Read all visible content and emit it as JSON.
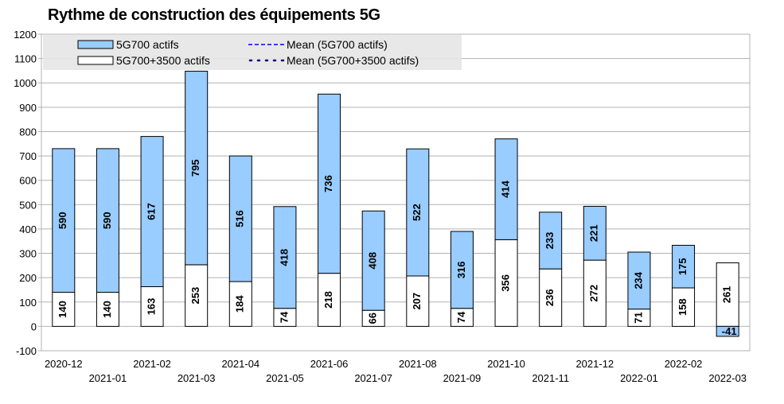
{
  "chart_data": {
    "type": "bar",
    "stacked": true,
    "title": "Rythme de construction des équipements 5G",
    "xlabel": "",
    "ylabel": "",
    "ylim": [
      -100,
      1200
    ],
    "yticks": [
      -100,
      0,
      100,
      200,
      300,
      400,
      500,
      600,
      700,
      800,
      900,
      1000,
      1100,
      1200
    ],
    "grid": true,
    "legend_position": "top-left",
    "categories": [
      "2020-12",
      "2021-01",
      "2021-02",
      "2021-03",
      "2021-04",
      "2021-05",
      "2021-06",
      "2021-07",
      "2021-08",
      "2021-09",
      "2021-10",
      "2021-11",
      "2021-12",
      "2022-01",
      "2022-02",
      "2022-03"
    ],
    "series": [
      {
        "name": "5G700+3500 actifs",
        "color": "#ffffff",
        "values": [
          140,
          140,
          163,
          253,
          184,
          74,
          218,
          66,
          207,
          74,
          356,
          236,
          272,
          71,
          158,
          261
        ]
      },
      {
        "name": "5G700 actifs",
        "color": "#99ccff",
        "values": [
          590,
          590,
          617,
          795,
          516,
          418,
          736,
          408,
          522,
          316,
          414,
          233,
          221,
          234,
          175,
          -41
        ]
      }
    ],
    "legend": [
      {
        "label": "5G700 actifs",
        "kind": "swatch",
        "color": "#99ccff"
      },
      {
        "label": "Mean (5G700 actifs)",
        "kind": "dashed-line",
        "color": "#0000ff"
      },
      {
        "label": "5G700+3500 actifs",
        "kind": "swatch",
        "color": "#ffffff"
      },
      {
        "label": "Mean (5G700+3500 actifs)",
        "kind": "dotted-line",
        "color": "#000080"
      }
    ]
  }
}
